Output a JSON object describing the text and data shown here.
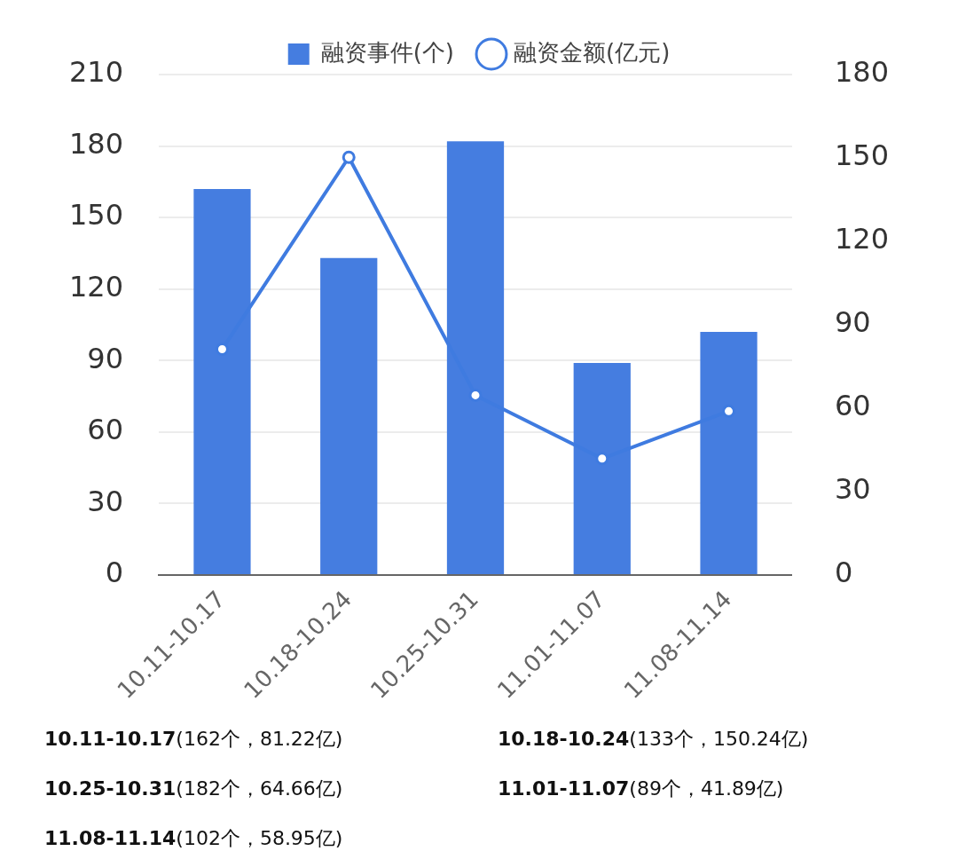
{
  "chart_data": {
    "type": "bar",
    "categories": [
      "10.11-10.17",
      "10.18-10.24",
      "10.25-10.31",
      "11.01-11.07",
      "11.08-11.14"
    ],
    "series": [
      {
        "name": "融资事件(个)",
        "color": "#457de0",
        "values": [
          162,
          133,
          182,
          89,
          102
        ]
      },
      {
        "name": "融资金额(亿元)",
        "type": "line",
        "axis": "y2",
        "color": "#3f7be0",
        "values": [
          81.22,
          150.24,
          64.66,
          41.89,
          58.95
        ]
      }
    ],
    "ylim": [
      0,
      210
    ],
    "yticks": [
      0,
      30,
      60,
      90,
      120,
      150,
      180,
      210
    ],
    "y2lim": [
      0,
      180
    ],
    "y2ticks": [
      0,
      30,
      60,
      90,
      120,
      150,
      180
    ],
    "grid": "y",
    "legend": "top",
    "marker": "circle",
    "line_style": "solid",
    "annotations": [
      "10.11-10.17(162个，81.22亿)",
      "10.18-10.24(133个，150.24亿)",
      "10.25-10.31(182个，64.66亿)",
      "11.01-11.07(89个，41.89亿)",
      "11.08-11.14(102个，58.95亿)"
    ]
  }
}
